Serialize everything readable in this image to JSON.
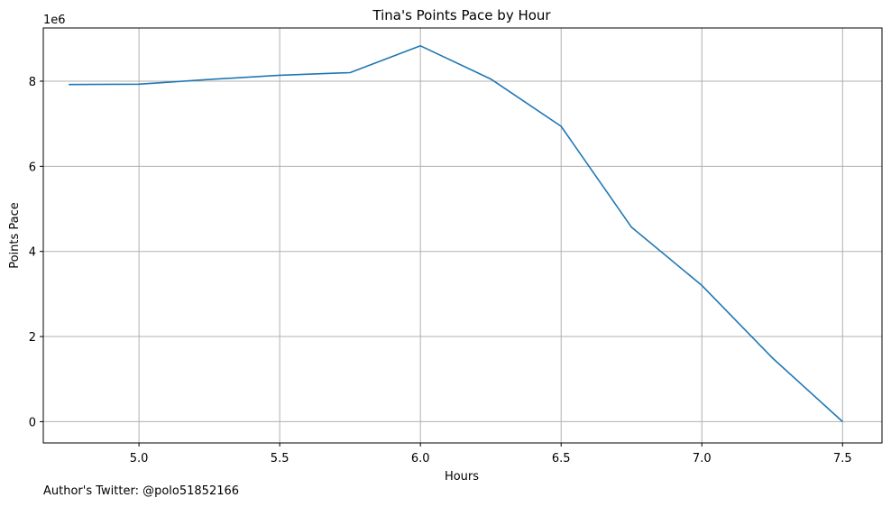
{
  "chart_data": {
    "type": "line",
    "title": "Tina's Points Pace by Hour",
    "xlabel": "Hours",
    "ylabel": "Points Pace",
    "y_offset_label": "1e6",
    "grid": true,
    "xlim": [
      4.66,
      7.64
    ],
    "ylim": [
      -500000,
      9250000
    ],
    "x_ticks": [
      5.0,
      5.5,
      6.0,
      6.5,
      7.0,
      7.5
    ],
    "x_tick_labels": [
      "5.0",
      "5.5",
      "6.0",
      "6.5",
      "7.0",
      "7.5"
    ],
    "y_ticks": [
      0,
      2000000,
      4000000,
      6000000,
      8000000
    ],
    "y_tick_labels": [
      "0",
      "2",
      "4",
      "6",
      "8"
    ],
    "series": [
      {
        "color": "#1f77b4",
        "x": [
          4.75,
          5.0,
          5.25,
          5.5,
          5.75,
          6.0,
          6.25,
          6.5,
          6.75,
          7.0,
          7.25,
          7.5
        ],
        "y": [
          7920000,
          7930000,
          8040000,
          8140000,
          8200000,
          8830000,
          8050000,
          6940000,
          4570000,
          3200000,
          1500000,
          0
        ]
      }
    ]
  },
  "footer": {
    "note": "Author's Twitter: @polo51852166"
  }
}
